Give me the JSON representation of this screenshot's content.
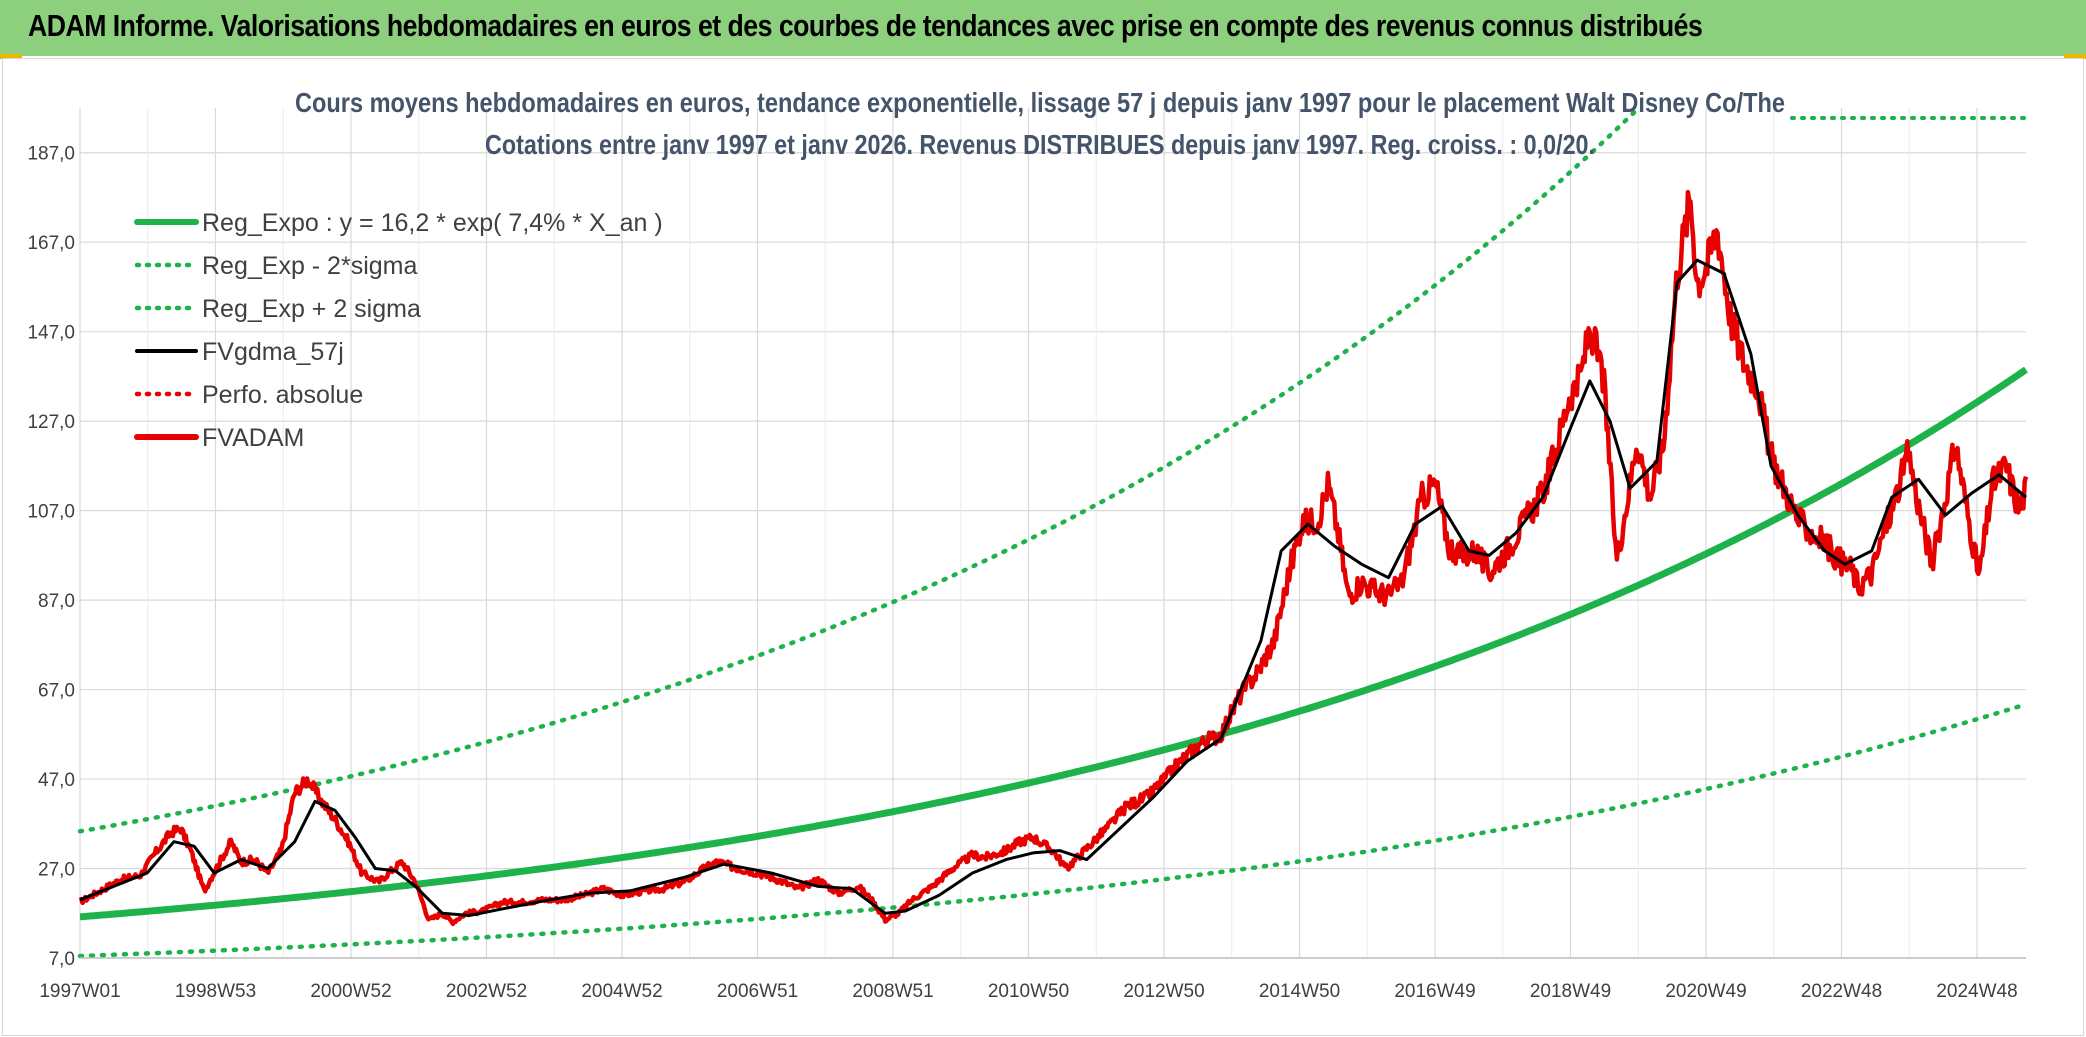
{
  "header": {
    "title": "ADAM Informe. Valorisations hebdomadaires en euros et des courbes de tendances avec prise en compte des revenus connus distribués"
  },
  "chart_data": {
    "type": "line",
    "title": "Cours moyens hebdomadaires en euros, tendance exponentielle, lissage 57 j depuis janv 1997 pour le placement Walt Disney Co/The",
    "subtitle": "Cotations entre janv 1997 et janv 2026. Revenus DISTRIBUES depuis janv 1997. Reg. croiss. : 0,0/20.",
    "xlabel": "",
    "ylabel": "",
    "ylim": [
      7,
      197
    ],
    "y_ticks": [
      "7,0",
      "27,0",
      "47,0",
      "67,0",
      "87,0",
      "107,0",
      "127,0",
      "147,0",
      "167,0",
      "187,0"
    ],
    "y_tick_values": [
      7,
      27,
      47,
      67,
      87,
      107,
      127,
      147,
      167,
      187
    ],
    "x_ticks": [
      "1997W01",
      "1998W53",
      "2000W52",
      "2002W52",
      "2004W52",
      "2006W51",
      "2008W51",
      "2010W50",
      "2012W50",
      "2014W50",
      "2016W49",
      "2018W49",
      "2020W49",
      "2022W48",
      "2024W48"
    ],
    "x_range_years": [
      1997.0,
      2026.0
    ],
    "legend": [
      {
        "name": "Reg_Expo : y = 16,2 * exp( 7,4% *  X_an )",
        "color": "#1db34a",
        "style": "solid"
      },
      {
        "name": "Reg_Exp - 2*sigma",
        "color": "#1db34a",
        "style": "dotted"
      },
      {
        "name": "Reg_Exp + 2 sigma",
        "color": "#1db34a",
        "style": "dotted"
      },
      {
        "name": "FVgdma_57j",
        "color": "#000000",
        "style": "solid"
      },
      {
        "name": "Perfo. absolue",
        "color": "#e60000",
        "style": "dotted"
      },
      {
        "name": "FVADAM",
        "color": "#e60000",
        "style": "solid"
      }
    ],
    "regression": {
      "a": 16.2,
      "rate": 0.074,
      "lower_factor": 0.46,
      "upper_factor": 2.18
    },
    "series": [
      {
        "name": "FVADAM",
        "x": [
          1997.0,
          1997.3,
          1997.6,
          1997.9,
          1998.1,
          1998.35,
          1998.5,
          1998.65,
          1998.85,
          1999.1,
          1999.25,
          1999.4,
          1999.6,
          1999.8,
          2000.0,
          2000.2,
          2000.4,
          2000.6,
          2000.8,
          2001.0,
          2001.2,
          2001.45,
          2001.6,
          2001.8,
          2002.0,
          2002.2,
          2002.4,
          2002.55,
          2002.75,
          2003.0,
          2003.3,
          2003.6,
          2003.9,
          2004.2,
          2004.5,
          2004.8,
          2005.1,
          2005.4,
          2005.7,
          2006.0,
          2006.3,
          2006.5,
          2006.8,
          2007.1,
          2007.4,
          2007.7,
          2008.0,
          2008.3,
          2008.6,
          2008.8,
          2009.0,
          2009.2,
          2009.4,
          2009.7,
          2010.0,
          2010.3,
          2010.5,
          2010.8,
          2011.0,
          2011.2,
          2011.5,
          2011.7,
          2012.0,
          2012.3,
          2012.6,
          2012.9,
          2013.1,
          2013.4,
          2013.7,
          2014.0,
          2014.3,
          2014.55,
          2014.8,
          2015.0,
          2015.2,
          2015.45,
          2015.6,
          2015.75,
          2015.9,
          2016.1,
          2016.3,
          2016.5,
          2016.7,
          2017.0,
          2017.2,
          2017.4,
          2017.6,
          2017.8,
          2018.0,
          2018.3,
          2018.5,
          2018.8,
          2019.0,
          2019.2,
          2019.35,
          2019.5,
          2019.7,
          2019.9,
          2020.1,
          2020.2,
          2020.4,
          2020.6,
          2020.8,
          2021.0,
          2021.1,
          2021.25,
          2021.4,
          2021.6,
          2021.8,
          2022.0,
          2022.2,
          2022.4,
          2022.6,
          2022.8,
          2023.0,
          2023.2,
          2023.4,
          2023.5,
          2023.7,
          2023.9,
          2024.1,
          2024.25,
          2024.4,
          2024.6,
          2024.8,
          2024.95,
          2025.1,
          2025.3,
          2025.5,
          2025.7,
          2025.9,
          2026.0
        ],
        "values": [
          19.5,
          22,
          24.5,
          25.5,
          30,
          35,
          36,
          31,
          22,
          29,
          33,
          28.5,
          29,
          26,
          31,
          44,
          47,
          42,
          38,
          33,
          26,
          24,
          26,
          28.5,
          24,
          15.5,
          17,
          15,
          17,
          17.5,
          19.5,
          19.5,
          20,
          20,
          21,
          22.5,
          21,
          22,
          22.5,
          24,
          27,
          28.5,
          27,
          26,
          24.5,
          22.5,
          24.5,
          21.5,
          23,
          20,
          15.5,
          17,
          20,
          23,
          27,
          30,
          29.5,
          31,
          33,
          34,
          31,
          27,
          31.5,
          36,
          41,
          43,
          46,
          51,
          55,
          57,
          66,
          71,
          78,
          92,
          104,
          105,
          113,
          102,
          88,
          91,
          89,
          88,
          91,
          110,
          113,
          99,
          97,
          98,
          93,
          99,
          104,
          111,
          121,
          133,
          136,
          148,
          137,
          96,
          113,
          123,
          110,
          122,
          160,
          177,
          158,
          162,
          170,
          150,
          140,
          135,
          119,
          112,
          105,
          102,
          100,
          96,
          94,
          90,
          93,
          103,
          112,
          120,
          108,
          95,
          110,
          122,
          109,
          92,
          113,
          117,
          107,
          112
        ]
      },
      {
        "name": "FVgdma_57j",
        "x": [
          1997.0,
          1997.5,
          1998.0,
          1998.4,
          1998.7,
          1999.0,
          1999.4,
          1999.8,
          2000.2,
          2000.5,
          2000.8,
          2001.1,
          2001.4,
          2001.7,
          2002.0,
          2002.4,
          2002.8,
          2003.3,
          2004.0,
          2004.6,
          2005.2,
          2006.0,
          2006.6,
          2007.3,
          2008.0,
          2008.5,
          2009.0,
          2009.3,
          2009.8,
          2010.3,
          2010.8,
          2011.2,
          2011.6,
          2012.0,
          2012.5,
          2013.0,
          2013.5,
          2014.0,
          2014.3,
          2014.6,
          2014.9,
          2015.3,
          2015.7,
          2016.1,
          2016.5,
          2016.9,
          2017.3,
          2017.7,
          2018.0,
          2018.4,
          2018.8,
          2019.2,
          2019.5,
          2019.8,
          2020.1,
          2020.5,
          2020.8,
          2021.1,
          2021.5,
          2021.9,
          2022.2,
          2022.6,
          2023.0,
          2023.3,
          2023.7,
          2024.0,
          2024.4,
          2024.8,
          2025.2,
          2025.6,
          2026.0
        ],
        "values": [
          20,
          23,
          26,
          33,
          32,
          26,
          29,
          27,
          33,
          42,
          40,
          34,
          27,
          26.5,
          23,
          17,
          16.5,
          18,
          20,
          21.5,
          22,
          25,
          28,
          26,
          23,
          22.5,
          17,
          17.5,
          21,
          26,
          29,
          30.5,
          31,
          29,
          36,
          43,
          51,
          56,
          67,
          78,
          98,
          104,
          99,
          95,
          92,
          104,
          108,
          98,
          97,
          102,
          110,
          125,
          136,
          127,
          112,
          118,
          158,
          163,
          160,
          142,
          117,
          106,
          98,
          95,
          98,
          110,
          114,
          106,
          111,
          115,
          110
        ]
      }
    ]
  }
}
